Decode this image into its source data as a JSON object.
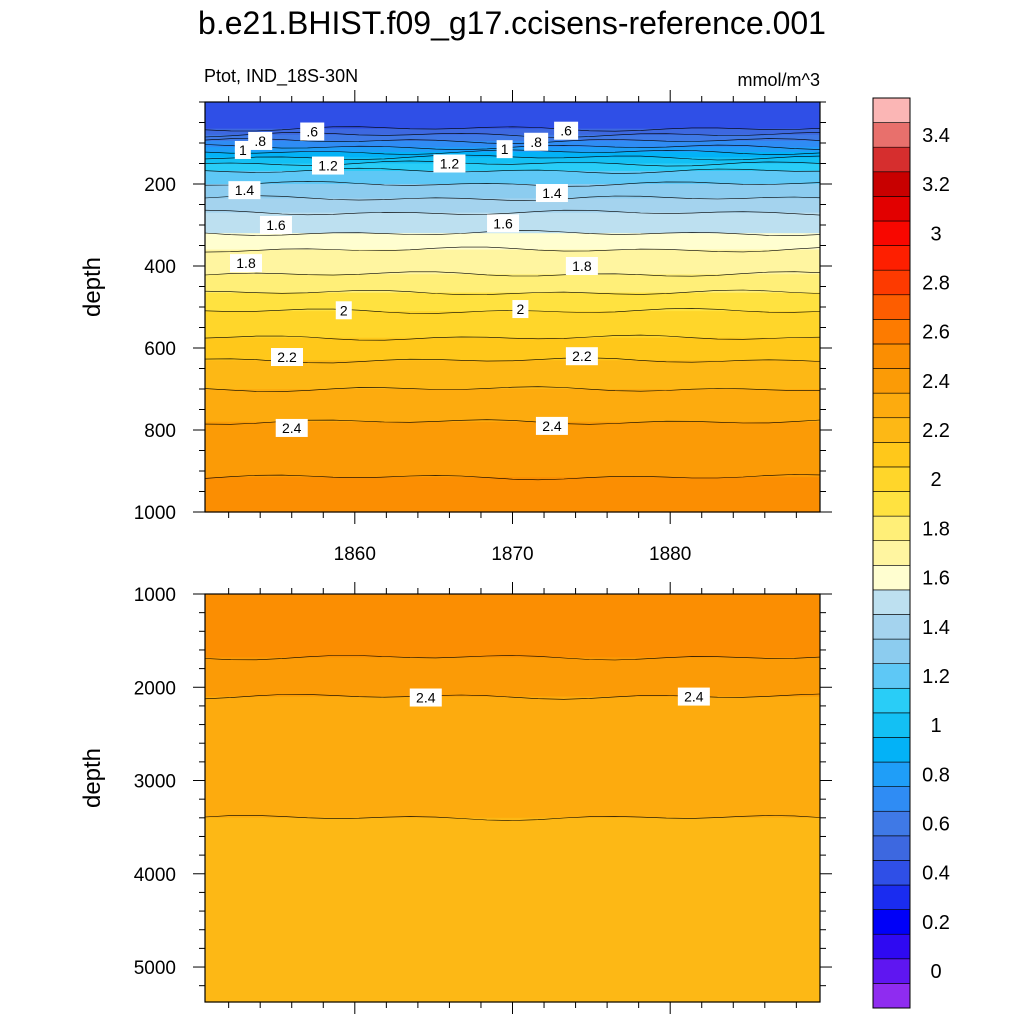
{
  "title": "b.e21.BHIST.f09_g17.ccisens-reference.001",
  "chart_data": {
    "type": "heatmap",
    "title": "b.e21.BHIST.f09_g17.ccisens-reference.001",
    "variable_label": "Ptot, IND_18S-30N",
    "units": "mmol/m^3",
    "x_ticks": [
      "1860",
      "1870",
      "1880"
    ],
    "x_range": [
      1850.5,
      1889.5
    ],
    "colorbar": {
      "levels": [
        -0.1,
        0,
        0.1,
        0.2,
        0.3,
        0.4,
        0.5,
        0.6,
        0.7,
        0.8,
        0.9,
        1.0,
        1.1,
        1.2,
        1.3,
        1.4,
        1.5,
        1.6,
        1.7,
        1.8,
        1.9,
        2.0,
        2.1,
        2.2,
        2.3,
        2.4,
        2.5,
        2.6,
        2.7,
        2.8,
        2.9,
        3.0,
        3.1,
        3.2,
        3.3,
        3.4,
        3.5,
        3.6
      ],
      "colors": [
        "#8f2cf0",
        "#5f16f1",
        "#2f09f2",
        "#0000f8",
        "#1a2cf0",
        "#2f4fe7",
        "#3d68e0",
        "#3f79e6",
        "#2f8cf4",
        "#1f9ef8",
        "#03b2f7",
        "#13c0f4",
        "#29cdf7",
        "#5ec8f6",
        "#8cccef",
        "#a4d3ee",
        "#bde0f0",
        "#fffed0",
        "#fff5a0",
        "#ffef78",
        "#ffe240",
        "#ffd62a",
        "#ffc81a",
        "#fdb815",
        "#fdab0e",
        "#fb9b06",
        "#fb8e02",
        "#fd7b00",
        "#fd5d00",
        "#fd3a00",
        "#fe1f00",
        "#f80700",
        "#e20000",
        "#c80000",
        "#d62e2e",
        "#e8706c",
        "#fbb6b5"
      ],
      "labels": [
        "0",
        "0.2",
        "0.4",
        "0.6",
        "0.8",
        "1",
        "1.2",
        "1.4",
        "1.6",
        "1.8",
        "2",
        "2.2",
        "2.4",
        "2.6",
        "2.8",
        "3",
        "3.2",
        "3.4"
      ],
      "label_values": [
        0,
        0.2,
        0.4,
        0.6,
        0.8,
        1.0,
        1.2,
        1.4,
        1.6,
        1.8,
        2.0,
        2.2,
        2.4,
        2.6,
        2.8,
        3.0,
        3.2,
        3.4
      ]
    },
    "panels": [
      {
        "name": "upper",
        "ylabel": "depth",
        "ylim": [
          0,
          1000
        ],
        "y_ticks": [
          {
            "value": 200,
            "label": "200"
          },
          {
            "value": 400,
            "label": "400"
          },
          {
            "value": 600,
            "label": "600"
          },
          {
            "value": 800,
            "label": "800"
          },
          {
            "value": 1000,
            "label": "1000"
          }
        ],
        "contours": [
          {
            "level": 0.5,
            "depth": 65
          },
          {
            "level": 0.6,
            "depth": 80
          },
          {
            "level": 0.7,
            "depth": 95
          },
          {
            "level": 0.8,
            "depth": 110
          },
          {
            "level": 0.9,
            "depth": 122
          },
          {
            "level": 1.0,
            "depth": 135
          },
          {
            "level": 1.1,
            "depth": 150
          },
          {
            "level": 1.2,
            "depth": 168
          },
          {
            "level": 1.3,
            "depth": 200
          },
          {
            "level": 1.4,
            "depth": 235
          },
          {
            "level": 1.5,
            "depth": 270
          },
          {
            "level": 1.6,
            "depth": 320
          },
          {
            "level": 1.7,
            "depth": 360
          },
          {
            "level": 1.8,
            "depth": 420
          },
          {
            "level": 1.9,
            "depth": 465
          },
          {
            "level": 2.0,
            "depth": 510
          },
          {
            "level": 2.1,
            "depth": 575
          },
          {
            "level": 2.2,
            "depth": 630
          },
          {
            "level": 2.3,
            "depth": 700
          },
          {
            "level": 2.4,
            "depth": 780
          },
          {
            "level": 2.5,
            "depth": 915
          }
        ],
        "contour_labels": [
          {
            "text": ".6",
            "x": 1857.3,
            "depth": 72
          },
          {
            "text": ".6",
            "x": 1873.4,
            "depth": 70
          },
          {
            "text": ".8",
            "x": 1854.0,
            "depth": 95
          },
          {
            "text": ".8",
            "x": 1871.5,
            "depth": 97
          },
          {
            "text": "1",
            "x": 1852.9,
            "depth": 117
          },
          {
            "text": "1",
            "x": 1869.5,
            "depth": 115
          },
          {
            "text": "1.2",
            "x": 1858.3,
            "depth": 155
          },
          {
            "text": "1.2",
            "x": 1866.0,
            "depth": 150
          },
          {
            "text": "1.4",
            "x": 1853.0,
            "depth": 215
          },
          {
            "text": "1.4",
            "x": 1872.5,
            "depth": 222
          },
          {
            "text": "1.6",
            "x": 1855.0,
            "depth": 300
          },
          {
            "text": "1.6",
            "x": 1869.4,
            "depth": 296
          },
          {
            "text": "1.8",
            "x": 1853.1,
            "depth": 393
          },
          {
            "text": "1.8",
            "x": 1874.4,
            "depth": 400
          },
          {
            "text": "2",
            "x": 1859.3,
            "depth": 508
          },
          {
            "text": "2",
            "x": 1870.5,
            "depth": 505
          },
          {
            "text": "2.2",
            "x": 1855.7,
            "depth": 622
          },
          {
            "text": "2.2",
            "x": 1874.4,
            "depth": 620
          },
          {
            "text": "2.4",
            "x": 1856.0,
            "depth": 795
          },
          {
            "text": "2.4",
            "x": 1872.5,
            "depth": 790
          }
        ]
      },
      {
        "name": "lower",
        "ylabel": "depth",
        "ylim": [
          1000,
          5375
        ],
        "y_ticks": [
          {
            "value": 1000,
            "label": "1000"
          },
          {
            "value": 2000,
            "label": "2000"
          },
          {
            "value": 3000,
            "label": "3000"
          },
          {
            "value": 4000,
            "label": "4000"
          },
          {
            "value": 5000,
            "label": "5000"
          }
        ],
        "contours": [
          {
            "level": 2.5,
            "depth": 1680
          },
          {
            "level": 2.4,
            "depth": 2100
          },
          {
            "level": 2.3,
            "depth": 3400
          }
        ],
        "contour_labels": [
          {
            "text": "2.4",
            "x": 1864.5,
            "depth": 2110
          },
          {
            "text": "2.4",
            "x": 1881.5,
            "depth": 2100
          }
        ]
      }
    ]
  }
}
